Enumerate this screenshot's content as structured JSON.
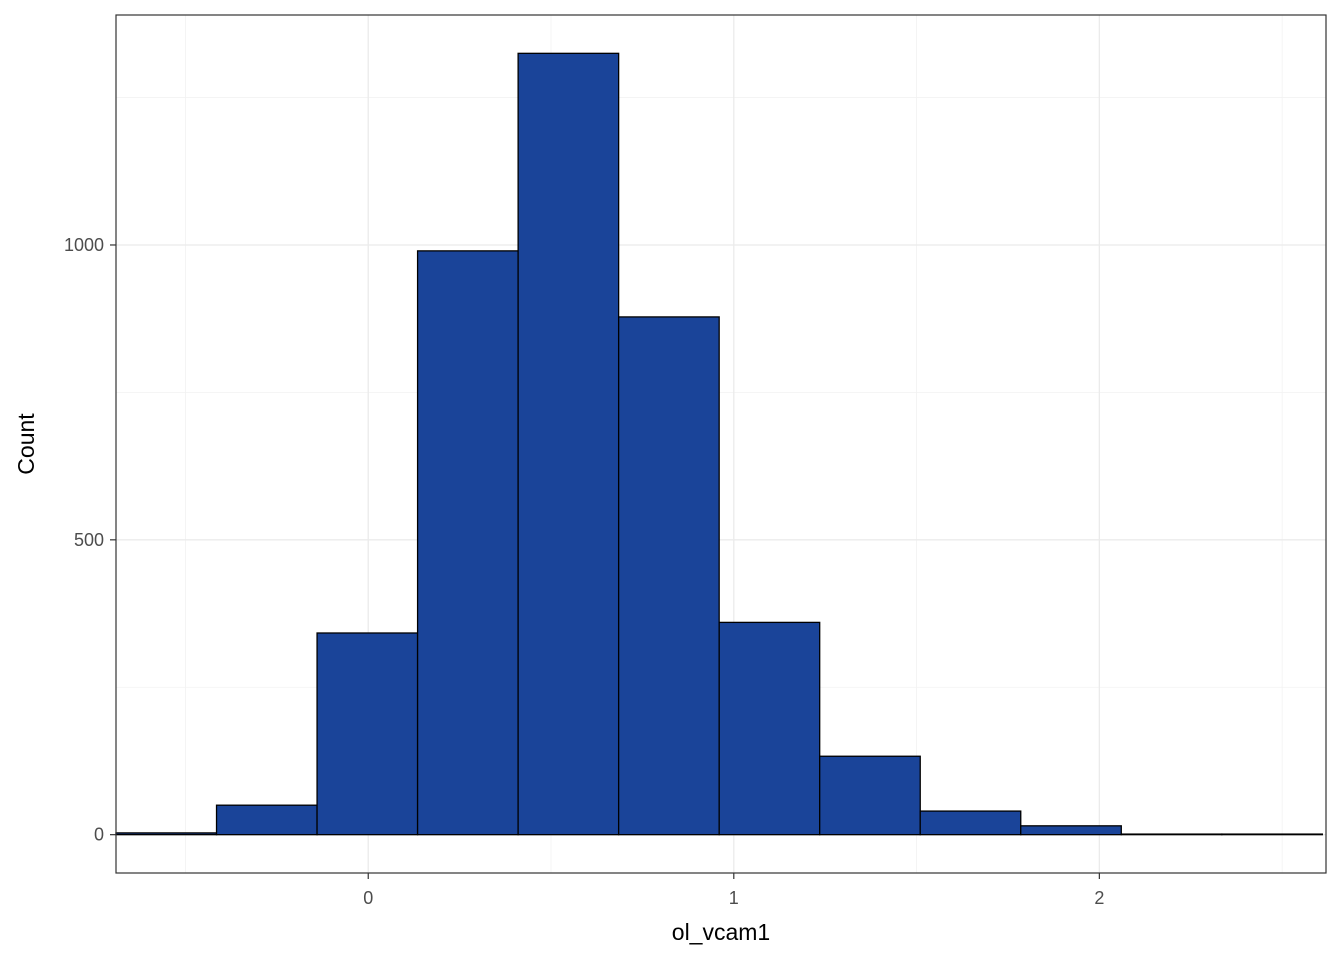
{
  "chart_data": {
    "type": "bar",
    "subtype": "histogram",
    "xlabel": "ol_vcam1",
    "ylabel": "Count",
    "xlim": [
      -0.69,
      2.62
    ],
    "ylim": [
      -65,
      1390
    ],
    "x_ticks": [
      0,
      1,
      2
    ],
    "y_ticks": [
      0,
      500,
      1000
    ],
    "x_tick_labels": [
      "0",
      "1",
      "2"
    ],
    "y_tick_labels": [
      "0",
      "500",
      "1000"
    ],
    "grid": true,
    "legend": "none",
    "bar_fill": "#1a4499",
    "bar_outline": "#000000",
    "bins": [
      {
        "x0": -0.69,
        "x1": -0.415,
        "count": 3
      },
      {
        "x0": -0.415,
        "x1": -0.14,
        "count": 50
      },
      {
        "x0": -0.14,
        "x1": 0.135,
        "count": 342
      },
      {
        "x0": 0.135,
        "x1": 0.41,
        "count": 990
      },
      {
        "x0": 0.41,
        "x1": 0.685,
        "count": 1325
      },
      {
        "x0": 0.685,
        "x1": 0.96,
        "count": 878
      },
      {
        "x0": 0.96,
        "x1": 1.235,
        "count": 360
      },
      {
        "x0": 1.235,
        "x1": 1.51,
        "count": 133
      },
      {
        "x0": 1.51,
        "x1": 1.785,
        "count": 40
      },
      {
        "x0": 1.785,
        "x1": 2.06,
        "count": 15
      },
      {
        "x0": 2.06,
        "x1": 2.335,
        "count": 1
      },
      {
        "x0": 2.335,
        "x1": 2.61,
        "count": 1
      }
    ]
  }
}
